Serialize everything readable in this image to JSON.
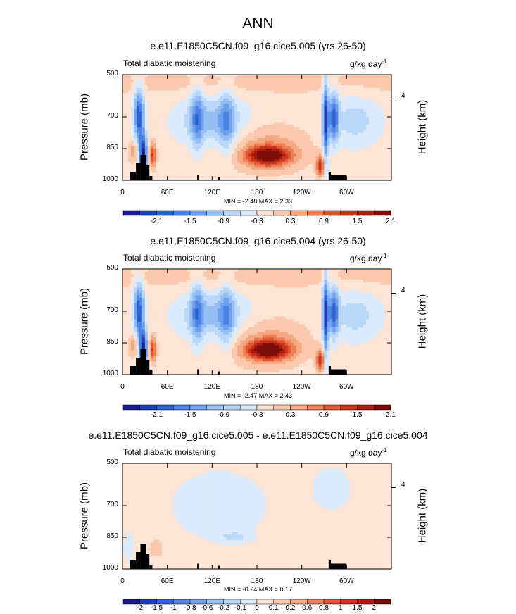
{
  "figure_title": "ANN",
  "chart_data": [
    {
      "type": "contour",
      "title": "e.e11.E1850C5CN.f09_g16.cice5.005 (yrs 26-50)",
      "subtitle_left": "Total diabatic moistening",
      "units": "g/kg day",
      "units_sup": "-1",
      "ylabel": "Pressure (mb)",
      "ylabel_right": "Height (km)",
      "yticks": [
        "500",
        "700",
        "850",
        "1000"
      ],
      "ytick_values": [
        500,
        700,
        850,
        1000
      ],
      "ylim": [
        1000,
        500
      ],
      "right_ticks": [
        "4"
      ],
      "xticks": [
        "0",
        "60E",
        "120E",
        "180",
        "120W",
        "60W"
      ],
      "xtick_values": [
        0,
        60,
        120,
        180,
        240,
        300
      ],
      "xlim": [
        0,
        360
      ],
      "min": -2.48,
      "max": 2.33,
      "minmax_text": "MIN =  -2.48  MAX =  2.33",
      "colorbar_labels": [
        "-2.1",
        "-1.5",
        "-0.9",
        "-0.3",
        "0.3",
        "0.9",
        "1.5",
        "2.1"
      ],
      "colorbar_levels": [
        -2.4,
        -2.1,
        -1.8,
        -1.5,
        -1.2,
        -0.9,
        -0.6,
        -0.3,
        0,
        0.3,
        0.6,
        0.9,
        1.2,
        1.5,
        1.8,
        2.1,
        2.4
      ],
      "features": [
        {
          "lon": 195,
          "p": 880,
          "value": 2.3,
          "desc": "low-level moistening maximum"
        },
        {
          "lon": 22,
          "p": 680,
          "value": -1.5
        },
        {
          "lon": 28,
          "p": 860,
          "value": -2.4
        },
        {
          "lon": 100,
          "p": 700,
          "value": -1.2
        },
        {
          "lon": 140,
          "p": 720,
          "value": -1.2
        },
        {
          "lon": 290,
          "p": 700,
          "value": -1.8
        },
        {
          "lon": 270,
          "p": 800,
          "value": -2.4
        }
      ]
    },
    {
      "type": "contour",
      "title": "e.e11.E1850C5CN.f09_g16.cice5.004 (yrs 26-50)",
      "subtitle_left": "Total diabatic moistening",
      "units": "g/kg day",
      "units_sup": "-1",
      "ylabel": "Pressure (mb)",
      "ylabel_right": "Height (km)",
      "yticks": [
        "500",
        "700",
        "850",
        "1000"
      ],
      "ytick_values": [
        500,
        700,
        850,
        1000
      ],
      "ylim": [
        1000,
        500
      ],
      "right_ticks": [
        "4"
      ],
      "xticks": [
        "0",
        "60E",
        "120E",
        "180",
        "120W",
        "60W"
      ],
      "xtick_values": [
        0,
        60,
        120,
        180,
        240,
        300
      ],
      "xlim": [
        0,
        360
      ],
      "min": -2.47,
      "max": 2.43,
      "minmax_text": "MIN =  -2.47  MAX =  2.43",
      "colorbar_labels": [
        "-2.1",
        "-1.5",
        "-0.9",
        "-0.3",
        "0.3",
        "0.9",
        "1.5",
        "2.1"
      ],
      "colorbar_levels": [
        -2.4,
        -2.1,
        -1.8,
        -1.5,
        -1.2,
        -0.9,
        -0.6,
        -0.3,
        0,
        0.3,
        0.6,
        0.9,
        1.2,
        1.5,
        1.8,
        2.1,
        2.4
      ],
      "features": [
        {
          "lon": 195,
          "p": 880,
          "value": 2.4,
          "desc": "low-level moistening maximum"
        },
        {
          "lon": 22,
          "p": 680,
          "value": -1.5
        },
        {
          "lon": 28,
          "p": 860,
          "value": -2.4
        },
        {
          "lon": 100,
          "p": 700,
          "value": -1.2
        },
        {
          "lon": 140,
          "p": 720,
          "value": -1.2
        },
        {
          "lon": 290,
          "p": 700,
          "value": -1.8
        },
        {
          "lon": 270,
          "p": 800,
          "value": -2.4
        }
      ]
    },
    {
      "type": "contour",
      "title": "e.e11.E1850C5CN.f09_g16.cice5.005 - e.e11.E1850C5CN.f09_g16.cice5.004",
      "subtitle_left": "Total diabatic moistening",
      "units": "g/kg day",
      "units_sup": "-1",
      "ylabel": "Pressure (mb)",
      "ylabel_right": "Height (km)",
      "yticks": [
        "500",
        "700",
        "850",
        "1000"
      ],
      "ytick_values": [
        500,
        700,
        850,
        1000
      ],
      "ylim": [
        1000,
        500
      ],
      "right_ticks": [
        "4"
      ],
      "xticks": [
        "0",
        "60E",
        "120E",
        "180",
        "120W",
        "60W"
      ],
      "xtick_values": [
        0,
        60,
        120,
        180,
        240,
        300
      ],
      "xlim": [
        0,
        360
      ],
      "min": -0.24,
      "max": 0.17,
      "minmax_text": "MIN =  -0.24  MAX =  0.17",
      "colorbar_labels": [
        "-2",
        "-1.5",
        "-1",
        "-0.8",
        "-0.6",
        "-0.2",
        "-0.1",
        "0",
        "0.1",
        "0.2",
        "0.6",
        "0.8",
        "1",
        "1.5",
        "2"
      ],
      "colorbar_levels": [
        -2,
        -1.5,
        -1,
        -0.8,
        -0.6,
        -0.4,
        -0.2,
        -0.1,
        0,
        0.1,
        0.2,
        0.4,
        0.6,
        0.8,
        1,
        1.5,
        2
      ],
      "features": [
        {
          "lon": 150,
          "p": 850,
          "value": -0.2
        },
        {
          "lon": 40,
          "p": 900,
          "value": 0.1
        },
        {
          "lon": 280,
          "p": 600,
          "value": -0.1
        }
      ]
    }
  ]
}
